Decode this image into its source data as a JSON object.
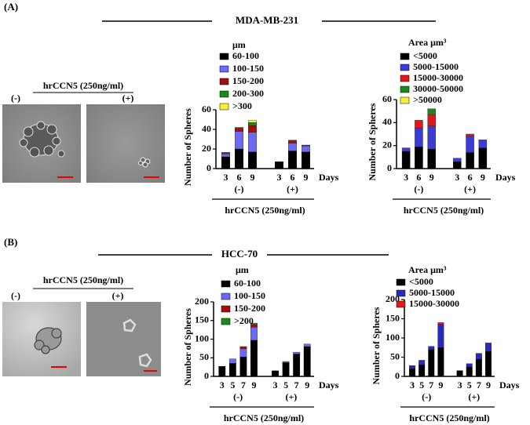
{
  "panels": [
    {
      "label": "(A)",
      "title": "MDA-MB-231",
      "image_caption": "hrCCN5 (250ng/ml)",
      "image_labels": [
        "(-)",
        "(+)"
      ]
    },
    {
      "label": "(B)",
      "title": "HCC-70",
      "image_caption": "hrCCN5 (250ng/ml)",
      "image_labels": [
        "(-)",
        "(+)"
      ]
    }
  ],
  "chart_data": [
    {
      "type": "bar",
      "stacked": true,
      "legend_title": "μm",
      "y_label": "Number of Spheres",
      "x_label": "Days",
      "categories": [
        "3",
        "6",
        "9",
        "3",
        "6",
        "9"
      ],
      "groups": [
        "(-)",
        "(+)"
      ],
      "group_caption": "hrCCN5 (250ng/ml)",
      "ylim": [
        0,
        60
      ],
      "yticks": [
        0,
        20,
        40,
        60
      ],
      "series": [
        {
          "name": "60-100",
          "color": "#000000",
          "values": [
            12,
            20,
            17,
            7,
            18,
            17
          ]
        },
        {
          "name": "100-150",
          "color": "#6a6af2",
          "values": [
            3,
            18,
            20,
            0,
            8,
            6
          ]
        },
        {
          "name": "150-200",
          "color": "#a01010",
          "values": [
            1.5,
            3,
            7,
            0,
            3,
            1
          ]
        },
        {
          "name": "200-300",
          "color": "#1a8a1a",
          "values": [
            0,
            1,
            3,
            0,
            0,
            0
          ]
        },
        {
          "name": ">300",
          "color": "#f5f03c",
          "values": [
            0,
            0,
            2,
            0,
            0,
            0
          ]
        }
      ]
    },
    {
      "type": "bar",
      "stacked": true,
      "legend_title": "Area μm³",
      "y_label": "Number of Spheres",
      "x_label": "Days",
      "categories": [
        "3",
        "6",
        "9",
        "3",
        "6",
        "9"
      ],
      "groups": [
        "(-)",
        "(+)"
      ],
      "group_caption": "hrCCN5 (250ng/ml)",
      "ylim": [
        0,
        60
      ],
      "yticks": [
        0,
        20,
        40,
        60
      ],
      "series": [
        {
          "name": "<5000",
          "color": "#000000",
          "values": [
            15,
            19,
            17,
            6,
            14,
            18
          ]
        },
        {
          "name": "5000-15000",
          "color": "#3b3bd8",
          "values": [
            3,
            16,
            20,
            3,
            14,
            7
          ]
        },
        {
          "name": "15000-30000",
          "color": "#e01818",
          "values": [
            0,
            7,
            10,
            0,
            2,
            0
          ]
        },
        {
          "name": "30000-50000",
          "color": "#1a8a1a",
          "values": [
            0,
            0,
            5,
            0,
            0,
            0
          ]
        },
        {
          "name": ">50000",
          "color": "#f5f03c",
          "values": [
            0,
            0,
            0,
            0,
            0,
            0
          ]
        }
      ]
    },
    {
      "type": "bar",
      "stacked": true,
      "legend_title": "μm",
      "y_label": "Number of Spheres",
      "x_label": "Days",
      "categories": [
        "3",
        "5",
        "7",
        "9",
        "3",
        "5",
        "7",
        "9"
      ],
      "groups": [
        "(-)",
        "(+)"
      ],
      "group_caption": "hrCCN5 (250ng/ml)",
      "ylim": [
        0,
        200
      ],
      "yticks": [
        0,
        50,
        100,
        150,
        200
      ],
      "series": [
        {
          "name": "60-100",
          "color": "#000000",
          "values": [
            27,
            35,
            52,
            97,
            15,
            37,
            60,
            80
          ]
        },
        {
          "name": "100-150",
          "color": "#6a6af2",
          "values": [
            0,
            12,
            22,
            35,
            0,
            3,
            5,
            7
          ]
        },
        {
          "name": "150-200",
          "color": "#a01010",
          "values": [
            0,
            0,
            6,
            7,
            0,
            0,
            0,
            0
          ]
        },
        {
          "name": ">200",
          "color": "#1a8a1a",
          "values": [
            0,
            0,
            0,
            4,
            0,
            0,
            0,
            0
          ]
        }
      ]
    },
    {
      "type": "bar",
      "stacked": true,
      "legend_title": "Area μm³",
      "y_label": "Number of Spheres",
      "x_label": "Days",
      "categories": [
        "3",
        "5",
        "7",
        "9",
        "3",
        "5",
        "7",
        "9"
      ],
      "groups": [
        "(-)",
        "(+)"
      ],
      "group_caption": "hrCCN5 (250ng/ml)",
      "ylim": [
        0,
        200
      ],
      "yticks": [
        0,
        50,
        100,
        150,
        200
      ],
      "series": [
        {
          "name": "<5000",
          "color": "#000000",
          "values": [
            20,
            30,
            70,
            75,
            15,
            25,
            45,
            65
          ]
        },
        {
          "name": "5000-15000",
          "color": "#2a2ab8",
          "values": [
            8,
            12,
            8,
            60,
            0,
            8,
            15,
            22
          ]
        },
        {
          "name": "15000-30000",
          "color": "#e01818",
          "values": [
            0,
            0,
            0,
            5,
            0,
            0,
            0,
            0
          ]
        }
      ]
    }
  ]
}
